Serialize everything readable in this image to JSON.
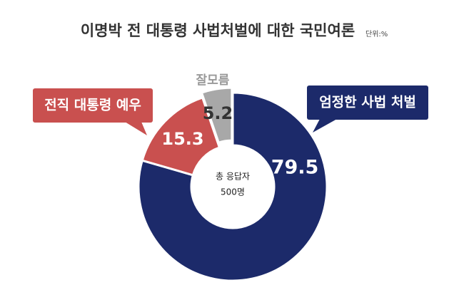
{
  "chart_data": {
    "type": "donut",
    "title": "이명박 전 대통령 사법처벌에 대한 국민여론",
    "unit_label": "단위:%",
    "categories": [
      "엄정한 사법 처벌",
      "전직 대통령 예우",
      "잘모름"
    ],
    "values": [
      79.5,
      15.3,
      5.2
    ],
    "colors": [
      "#1c2a6a",
      "#c9504f",
      "#a8a8a8"
    ],
    "center_label": [
      "총 응답자",
      "500명"
    ]
  }
}
